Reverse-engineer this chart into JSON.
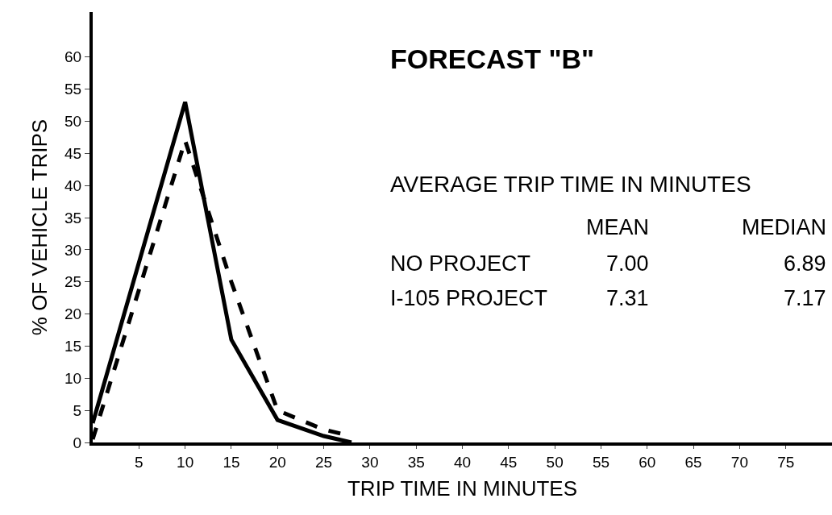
{
  "chart_data": {
    "type": "line",
    "title": "FORECAST \"B\"",
    "xlabel": "TRIP TIME IN MINUTES",
    "ylabel": "% OF VEHICLE TRIPS",
    "xlim": [
      0,
      80
    ],
    "xticks": [
      5,
      10,
      15,
      20,
      25,
      30,
      35,
      40,
      45,
      50,
      55,
      60,
      65,
      70,
      75
    ],
    "ylim": [
      0,
      67
    ],
    "yticks": [
      0,
      5,
      10,
      15,
      20,
      25,
      30,
      35,
      40,
      45,
      50,
      55,
      60
    ],
    "legend": false,
    "marker": "none",
    "x": [
      0,
      10,
      15,
      20,
      25,
      28
    ],
    "series": [
      {
        "color": "#000000",
        "line_style": "solid",
        "values": [
          3,
          53,
          16,
          3.5,
          1,
          0
        ]
      },
      {
        "color": "#000000",
        "line_style": "dashed",
        "values": [
          0.5,
          47,
          25,
          5,
          2,
          1
        ]
      }
    ],
    "annotations": [
      "AVERAGE TRIP TIME IN MINUTES",
      "MEAN",
      "MEDIAN",
      "NO PROJECT",
      "7.00",
      "6.89",
      "I-105 PROJECT",
      "7.31",
      "7.17"
    ]
  }
}
